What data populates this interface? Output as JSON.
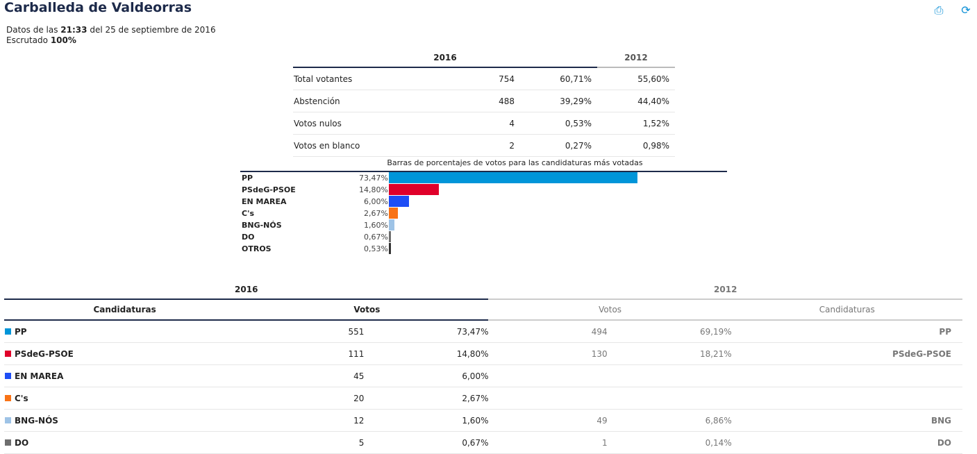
{
  "title": "Carballeda de Valdeorras",
  "icons": {
    "print": "print-icon",
    "refresh": "refresh-icon"
  },
  "info": {
    "prefix": "Datos de las",
    "time": "21:33",
    "suffix": "del 25 de septiembre de 2016",
    "scrutiny_label": "Escrutado",
    "scrutiny_value": "100%"
  },
  "summary": {
    "year_current": "2016",
    "year_previous": "2012",
    "rows": [
      {
        "label": "Total votantes",
        "votes": "754",
        "pct": "60,71%",
        "prev": "55,60%"
      },
      {
        "label": "Abstención",
        "votes": "488",
        "pct": "39,29%",
        "prev": "44,40%"
      },
      {
        "label": "Votos nulos",
        "votes": "4",
        "pct": "0,53%",
        "prev": "1,52%"
      },
      {
        "label": "Votos en blanco",
        "votes": "2",
        "pct": "0,27%",
        "prev": "0,98%"
      }
    ]
  },
  "chart_data": {
    "type": "bar",
    "title": "Barras de porcentajes de votos para las candidaturas más votadas",
    "categories": [
      "PP",
      "PSdeG-PSOE",
      "EN MAREA",
      "C's",
      "BNG-NÓS",
      "DO",
      "OTROS"
    ],
    "values": [
      73.47,
      14.8,
      6.0,
      2.67,
      1.6,
      0.67,
      0.53
    ],
    "labels": [
      "73,47%",
      "14,80%",
      "6,00%",
      "2,67%",
      "1,60%",
      "0,67%",
      "0,53%"
    ],
    "colors": [
      "#0095d9",
      "#e0002a",
      "#1e4ef5",
      "#f97316",
      "#9ec3e6",
      "#6e6e6e",
      "#333333"
    ]
  },
  "results": {
    "year_current": "2016",
    "year_previous": "2012",
    "col_candidaturas": "Candidaturas",
    "col_votos": "Votos",
    "col_votos_prev": "Votos",
    "col_candidaturas_prev": "Candidaturas",
    "rows": [
      {
        "name": "PP",
        "color": "#0095d9",
        "votes": "551",
        "pct": "73,47%",
        "prev_votes": "494",
        "prev_pct": "69,19%",
        "prev_name": "PP"
      },
      {
        "name": "PSdeG-PSOE",
        "color": "#e0002a",
        "votes": "111",
        "pct": "14,80%",
        "prev_votes": "130",
        "prev_pct": "18,21%",
        "prev_name": "PSdeG-PSOE"
      },
      {
        "name": "EN MAREA",
        "color": "#1e4ef5",
        "votes": "45",
        "pct": "6,00%",
        "prev_votes": "",
        "prev_pct": "",
        "prev_name": ""
      },
      {
        "name": "C's",
        "color": "#f97316",
        "votes": "20",
        "pct": "2,67%",
        "prev_votes": "",
        "prev_pct": "",
        "prev_name": ""
      },
      {
        "name": "BNG-NÓS",
        "color": "#9ec3e6",
        "votes": "12",
        "pct": "1,60%",
        "prev_votes": "49",
        "prev_pct": "6,86%",
        "prev_name": "BNG"
      },
      {
        "name": "DO",
        "color": "#6e6e6e",
        "votes": "5",
        "pct": "0,67%",
        "prev_votes": "1",
        "prev_pct": "0,14%",
        "prev_name": "DO"
      }
    ]
  }
}
